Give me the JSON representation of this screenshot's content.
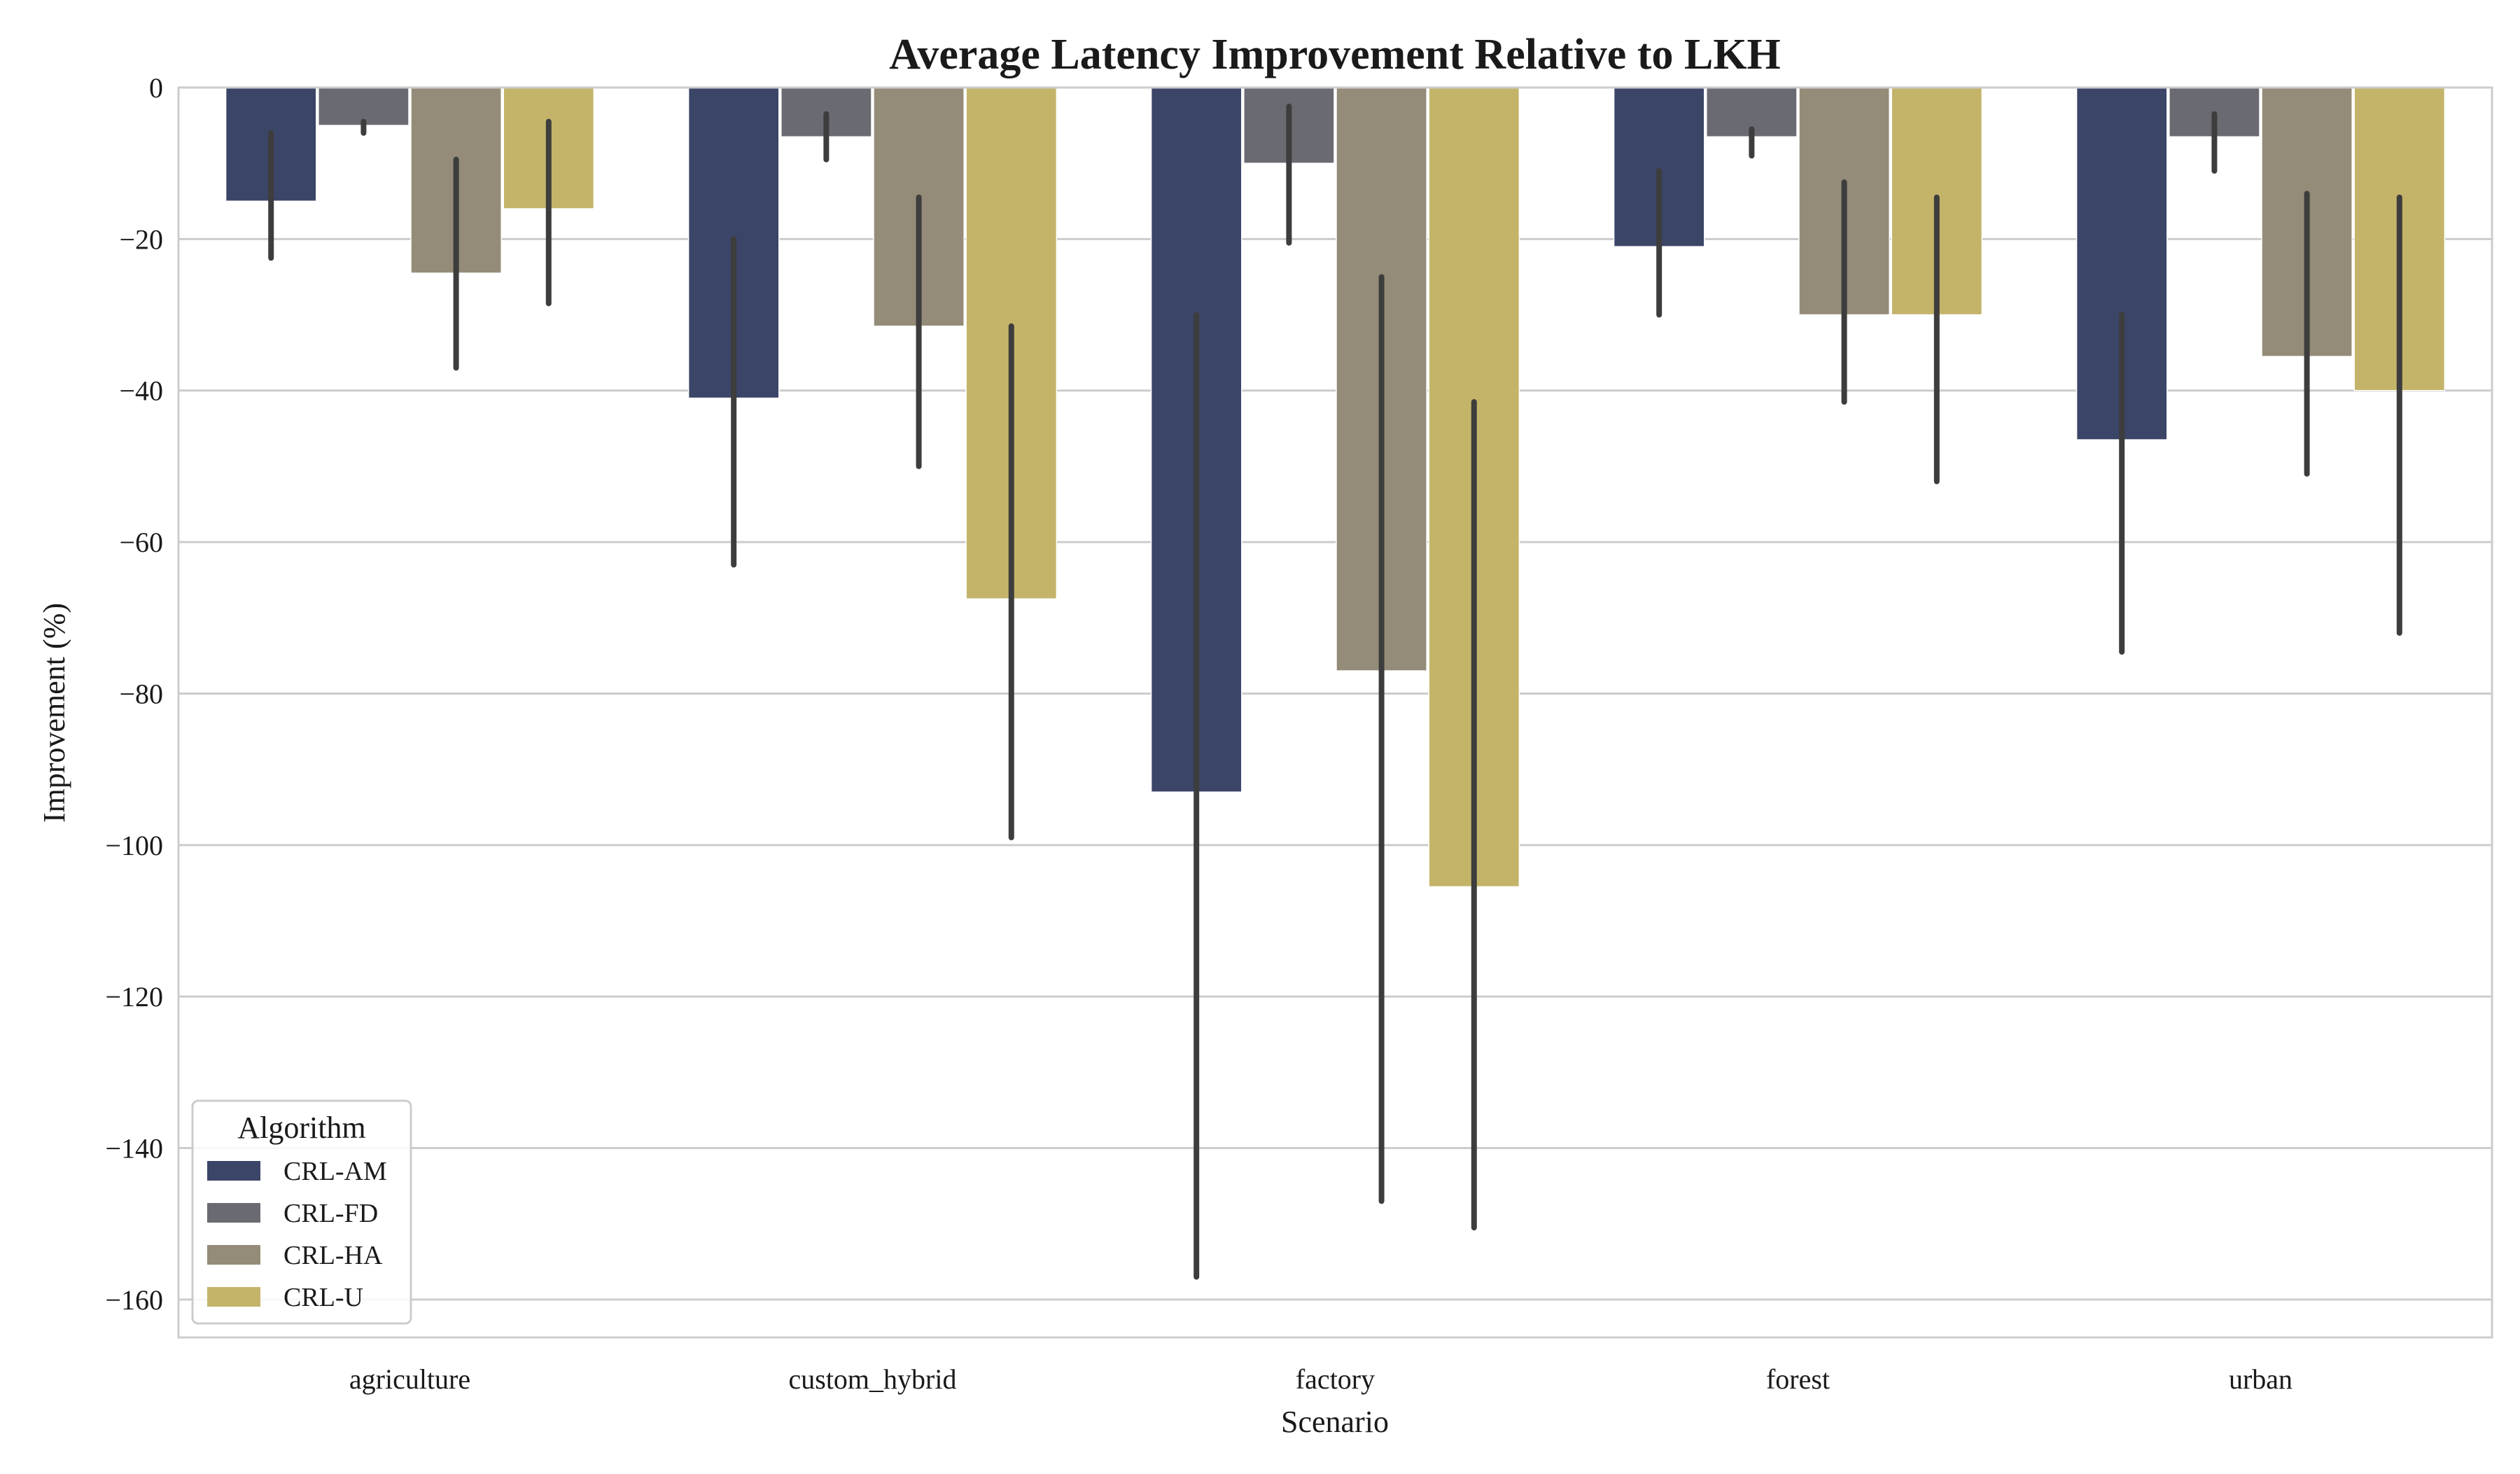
{
  "chart_data": {
    "type": "bar",
    "title": "Average Latency Improvement Relative to LKH",
    "xlabel": "Scenario",
    "ylabel": "Improvement (%)",
    "categories": [
      "agriculture",
      "custom_hybrid",
      "factory",
      "forest",
      "urban"
    ],
    "ylim": [
      -165,
      0
    ],
    "yticks": [
      0,
      -20,
      -40,
      -60,
      -80,
      -100,
      -120,
      -140,
      -160
    ],
    "ytick_labels": [
      "0",
      "−20",
      "−40",
      "−60",
      "−80",
      "−100",
      "−120",
      "−140",
      "−160"
    ],
    "grid": "horizontal",
    "legend": {
      "title": "Algorithm",
      "placement": "lower-left"
    },
    "series": [
      {
        "name": "CRL-AM",
        "color": "#3b4567",
        "values": [
          -15,
          -41,
          -93,
          -21,
          -46.5
        ],
        "err_low": [
          -22.5,
          -63,
          -157,
          -30,
          -74.5
        ],
        "err_high": [
          -6,
          -20,
          -30,
          -11,
          -30
        ]
      },
      {
        "name": "CRL-FD",
        "color": "#6a6a72",
        "values": [
          -5,
          -6.5,
          -10,
          -6.5,
          -6.5
        ],
        "err_low": [
          -6,
          -9.5,
          -20.5,
          -9,
          -11
        ],
        "err_high": [
          -4.5,
          -3.5,
          -2.5,
          -5.5,
          -3.5
        ]
      },
      {
        "name": "CRL-HA",
        "color": "#948c78",
        "values": [
          -24.5,
          -31.5,
          -77,
          -30,
          -35.5
        ],
        "err_low": [
          -37,
          -50,
          -147,
          -41.5,
          -51
        ],
        "err_high": [
          -9.5,
          -14.5,
          -25,
          -12.5,
          -14
        ]
      },
      {
        "name": "CRL-U",
        "color": "#c4b46a",
        "values": [
          -16,
          -67.5,
          -105.5,
          -30,
          -40
        ],
        "err_low": [
          -28.5,
          -99,
          -150.5,
          -52,
          -72
        ],
        "err_high": [
          -4.5,
          -31.5,
          -41.5,
          -14.5,
          -14.5
        ]
      }
    ]
  }
}
